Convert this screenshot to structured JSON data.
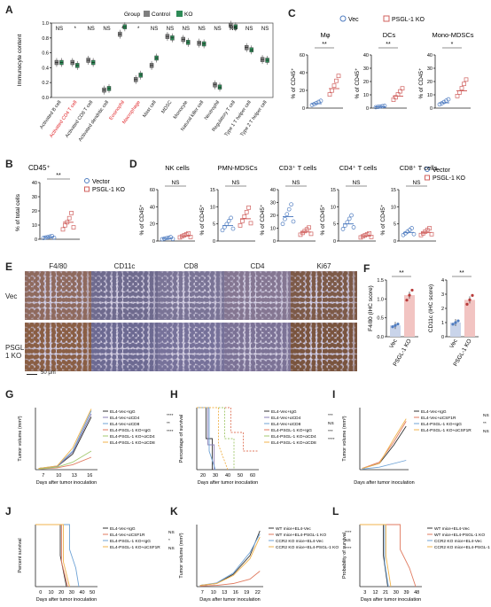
{
  "colors": {
    "control": "#7f7f7f",
    "ko": "#2e8b57",
    "vec": "#4f7cc0",
    "psgl": "#d0605e",
    "red_label": "#e0262a",
    "he_brown": "#8a5a3a"
  },
  "panelA": {
    "label": "A",
    "legend_title": "Group",
    "legend": [
      "Control",
      "KO"
    ],
    "ylabel": "Immunocyte content",
    "yticks": [
      "0.0",
      "0.2",
      "0.4",
      "0.6",
      "0.8",
      "1.0"
    ],
    "categories": [
      "Activated B cell",
      "Activated CD4 T cell",
      "Activated CD8 T cell",
      "Activated dendritic cell",
      "Eosinophil",
      "Macrophage",
      "Mast cell",
      "MDSC",
      "Monocyte",
      "Natural killer cell",
      "Neutrophil",
      "Regulatory T cell",
      "Type 1 T helper cell",
      "Type 2 T helper cell"
    ],
    "red_categories": [
      "Activated CD4 T cell",
      "Eosinophil",
      "Macrophage"
    ],
    "sig": [
      "NS",
      "*",
      "NS",
      "NS",
      "*",
      "*",
      "NS",
      "NS",
      "NS",
      "NS",
      "NS",
      "NS",
      "NS",
      "NS"
    ]
  },
  "chart_data": [
    {
      "type": "box",
      "panel": "A",
      "ylabel": "Immunocyte content",
      "ylim": [
        0,
        1.0
      ],
      "categories": [
        "Activated B cell",
        "Activated CD4 T cell",
        "Activated CD8 T cell",
        "Activated dendritic cell",
        "Eosinophil",
        "Macrophage",
        "Mast cell",
        "MDSC",
        "Monocyte",
        "Natural killer cell",
        "Neutrophil",
        "Regulatory T cell",
        "Type 1 T helper cell",
        "Type 2 T helper cell"
      ],
      "series": [
        {
          "name": "Control",
          "values": [
            0.47,
            0.47,
            0.5,
            0.1,
            0.85,
            0.24,
            0.43,
            0.82,
            0.78,
            0.73,
            0.17,
            0.97,
            0.67,
            0.51
          ]
        },
        {
          "name": "KO",
          "values": [
            0.47,
            0.43,
            0.47,
            0.12,
            0.95,
            0.3,
            0.53,
            0.8,
            0.74,
            0.72,
            0.14,
            0.95,
            0.64,
            0.5
          ]
        }
      ]
    },
    {
      "type": "dot",
      "panel": "B",
      "title": "CD45+",
      "ylabel": "% of total cells",
      "ylim": [
        0,
        40
      ],
      "categories": [
        "Vector",
        "PSGL-1 KO"
      ],
      "values": [
        1.5,
        12
      ],
      "sig": "**"
    },
    {
      "type": "dot",
      "panel": "C",
      "subplots": [
        {
          "title": "Mφ",
          "ylim": [
            0,
            60
          ],
          "values": [
            5,
            22
          ],
          "sig": "**"
        },
        {
          "title": "DCs",
          "ylim": [
            0,
            40
          ],
          "values": [
            1,
            9
          ],
          "sig": "**"
        },
        {
          "title": "Mono-MDSCs",
          "ylim": [
            0,
            40
          ],
          "values": [
            4,
            13
          ],
          "sig": "*"
        }
      ],
      "ylabel": "% of CD45+",
      "categories": [
        "Vec",
        "PSGL-1 KO"
      ]
    },
    {
      "type": "dot",
      "panel": "D",
      "subplots": [
        {
          "title": "NK cells",
          "ylim": [
            0,
            60
          ],
          "values": [
            3,
            6
          ],
          "sig": "NS"
        },
        {
          "title": "PMN-MDSCs",
          "ylim": [
            0,
            15
          ],
          "values": [
            4.5,
            6.5
          ],
          "sig": "NS"
        },
        {
          "title": "CD3+ T cells",
          "ylim": [
            0,
            40
          ],
          "values": [
            19,
            7
          ],
          "sig": "NS"
        },
        {
          "title": "CD4+ T cells",
          "ylim": [
            0,
            15
          ],
          "values": [
            5,
            1.5
          ],
          "sig": "NS"
        },
        {
          "title": "CD8+ T cells",
          "ylim": [
            0,
            15
          ],
          "values": [
            2.5,
            2.5
          ],
          "sig": "NS"
        }
      ],
      "ylabel": "% of CD45+",
      "categories": [
        "Vector",
        "PSGL-1 KO"
      ]
    },
    {
      "type": "bar",
      "panel": "F",
      "subplots": [
        {
          "ylabel": "F4/80 (IHC score)",
          "ylim": [
            0,
            1.5
          ],
          "values": [
            0.3,
            1.1
          ],
          "sig": "**"
        },
        {
          "ylabel": "CD11c (IHC score)",
          "ylim": [
            0,
            4
          ],
          "values": [
            1.0,
            2.6
          ],
          "sig": "**"
        }
      ],
      "categories": [
        "Vec",
        "PSGL-1 KO"
      ]
    }
  ],
  "panelB": {
    "label": "B",
    "title": "CD45⁺",
    "ylabel": "% of total cells",
    "yticks": [
      "0",
      "10",
      "20",
      "30",
      "40"
    ],
    "sig": "**",
    "legend": [
      "Vector",
      "PSGL-1 KO"
    ]
  },
  "panelC": {
    "label": "C",
    "legend": [
      "Vec",
      "PSGL-1 KO"
    ],
    "ylabel": "% of CD45⁺",
    "sub": [
      {
        "title": "Mφ",
        "sig": "**",
        "yticks": [
          "0",
          "20",
          "40",
          "60"
        ]
      },
      {
        "title": "DCs",
        "sig": "**",
        "yticks": [
          "0",
          "10",
          "20",
          "30",
          "40"
        ]
      },
      {
        "title": "Mono-MDSCs",
        "sig": "*",
        "yticks": [
          "0",
          "10",
          "20",
          "30",
          "40"
        ]
      }
    ]
  },
  "panelD": {
    "label": "D",
    "legend": [
      "Vector",
      "PSGL-1 KO"
    ],
    "ylabel": "% of CD45⁺",
    "sub": [
      {
        "title": "NK cells",
        "sig": "NS",
        "yticks": [
          "0",
          "20",
          "40",
          "60"
        ]
      },
      {
        "title": "PMN-MDSCs",
        "sig": "NS",
        "yticks": [
          "0",
          "5",
          "10",
          "15"
        ]
      },
      {
        "title": "CD3⁺ T cells",
        "sig": "NS",
        "yticks": [
          "0",
          "10",
          "20",
          "30",
          "40"
        ]
      },
      {
        "title": "CD4⁺ T cells",
        "sig": "NS",
        "yticks": [
          "0",
          "5",
          "10",
          "15"
        ]
      },
      {
        "title": "CD8⁺ T cells",
        "sig": "NS",
        "yticks": [
          "0",
          "5",
          "10",
          "15"
        ]
      }
    ]
  },
  "panelE": {
    "label": "E",
    "columns": [
      "F4/80",
      "CD11c",
      "CD8",
      "CD4",
      "Ki67"
    ],
    "rows": [
      "Vec",
      "PSGL-1 KO"
    ],
    "scale": "50 μm"
  },
  "panelF": {
    "label": "F",
    "sub": [
      {
        "ylabel": "F4/80 (IHC score)",
        "sig": "**",
        "yticks": [
          "0.0",
          "0.5",
          "1.0",
          "1.5"
        ]
      },
      {
        "ylabel": "CD11c (IHC score)",
        "sig": "**",
        "yticks": [
          "0",
          "1",
          "2",
          "3",
          "4"
        ]
      }
    ],
    "xcats": [
      "Vec",
      "PSGL-1 KO"
    ]
  },
  "panelG": {
    "label": "G",
    "ylabel": "Tumor volume (mm³)",
    "xlabel": "Days after tumor inoculation",
    "xticks": [
      "7",
      "10",
      "13",
      "16"
    ],
    "legend": [
      "EL4-Vec+IgG",
      "EL4-Vec+αCD4",
      "EL4-Vec+αCD8",
      "EL4-PSGL-1 KO+IgG",
      "EL4-PSGL-1 KO+αCD4",
      "EL4-PSGL-1 KO+αCD8"
    ],
    "sig": [
      "****",
      "**",
      "****"
    ]
  },
  "panelH": {
    "label": "H",
    "ylabel": "Percentage of survival",
    "xlabel": "Days after tumor inoculation",
    "xticks": [
      "20",
      "30",
      "40",
      "50",
      "60"
    ],
    "legend": [
      "EL4-Vec+IgG",
      "EL4-Vec+αCD4",
      "EL4-Vec+αCD8",
      "EL4-PSGL-1 KO+IgG",
      "EL4-PSGL-1 KO+αCD4",
      "EL4-PSGL-1 KO+αCD8"
    ],
    "sig": [
      "***",
      "NS",
      "***",
      "****"
    ]
  },
  "panelI": {
    "label": "I",
    "ylabel": "Tumor volume (mm³)",
    "xlabel": "Days after tumor inoculation",
    "legend": [
      "EL4-Vec+IgG",
      "EL4-Vec+αCSF1R",
      "EL4-PSGL-1 KO+IgG",
      "EL4-PSGL-1 KO+αCSF1R"
    ],
    "sig": [
      "NS",
      "**",
      "NS"
    ]
  },
  "panelJ": {
    "label": "J",
    "ylabel": "Percent survival",
    "xlabel": "Days after tumor inoculation",
    "xticks": [
      "0",
      "10",
      "20",
      "30",
      "40",
      "50"
    ],
    "legend": [
      "EL4-Vec+IgG",
      "EL4-Vec+αCSF1R",
      "EL4-PSGL-1 KO+IgG",
      "EL4-PSGL-1 KO+αCSF1R"
    ],
    "sig": [
      "NS",
      "*",
      "NS"
    ]
  },
  "panelK": {
    "label": "K",
    "ylabel": "Tumor volume (mm³)",
    "xlabel": "Days after tumor inoculation",
    "xticks": [
      "7",
      "10",
      "13",
      "16",
      "19",
      "22"
    ],
    "legend": [
      "WT mice+EL4-Vec",
      "WT mice+EL4-PSGL-1 KO",
      "CCR2 KO mice+EL4-Vec",
      "CCR2 KO mice+EL4-PSGL-1 KO"
    ],
    "sig": [
      "****",
      "NS",
      "****"
    ]
  },
  "panelL": {
    "label": "L",
    "ylabel": "Probability of survival",
    "xlabel": "Days after tumor inoculation",
    "xticks": [
      "3",
      "12",
      "21",
      "30",
      "39",
      "48"
    ],
    "legend": [
      "WT mice+EL4-Vec",
      "WT mice+EL4-PSGL-1 KO",
      "CCR2 KO mice+EL4-Vec",
      "CCR2 KO mice+EL4-PSGL-1 KO"
    ],
    "sig": [
      "****",
      "NS",
      "****"
    ]
  }
}
